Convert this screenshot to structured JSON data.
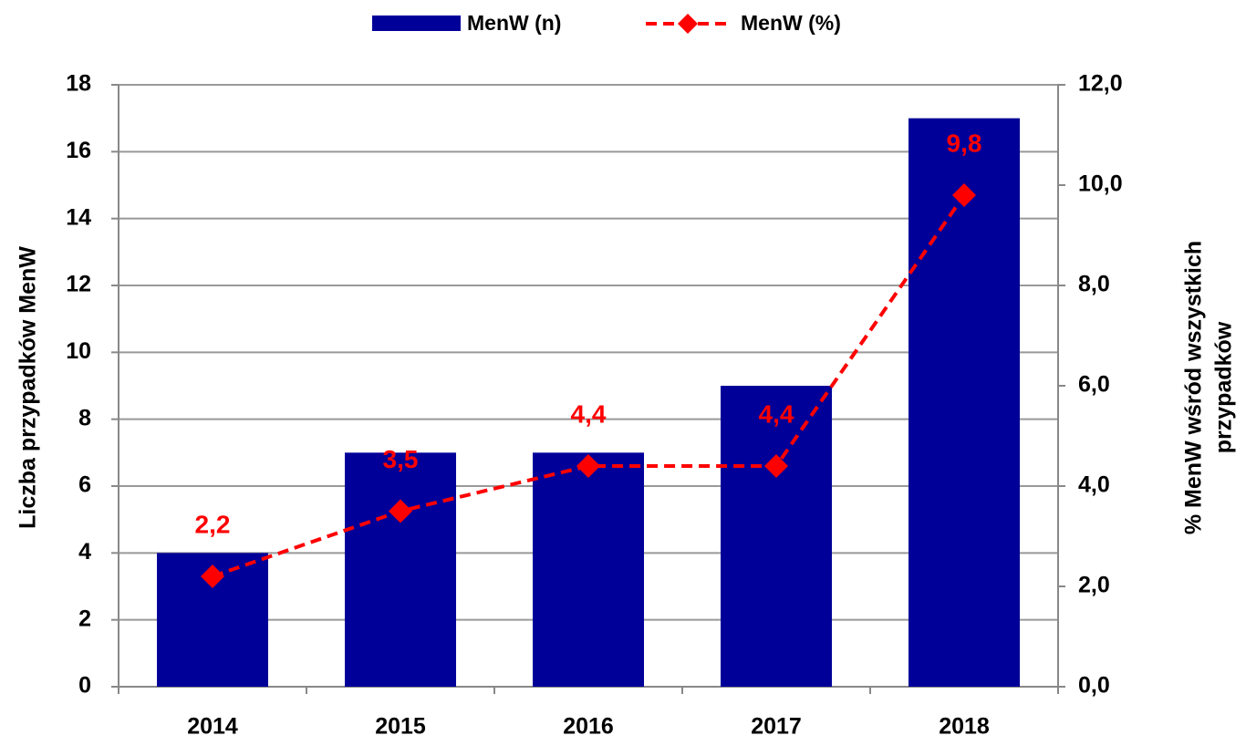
{
  "chart_data": {
    "type": "bar",
    "categories": [
      "2014",
      "2015",
      "2016",
      "2017",
      "2018"
    ],
    "series": [
      {
        "name": "MenW (n)",
        "type": "bar",
        "color": "#000099",
        "values": [
          4,
          7,
          7,
          9,
          17
        ]
      },
      {
        "name": "MenW (%)",
        "type": "line",
        "axis": "y2",
        "color": "#ff0000",
        "values": [
          2.2,
          3.5,
          4.4,
          4.4,
          9.8
        ],
        "value_labels": [
          "2,2",
          "3,5",
          "4,4",
          "4,4",
          "9,8"
        ]
      }
    ],
    "ylabel": "Liczba przypadków  MenW",
    "y2label": [
      "% MenW wśród wszystkich",
      "przypadków"
    ],
    "ylim": [
      0,
      18
    ],
    "yticks": [
      0,
      2,
      4,
      6,
      8,
      10,
      12,
      14,
      16,
      18
    ],
    "y2lim": [
      0,
      12
    ],
    "y2ticks": [
      {
        "value": 0,
        "label": "0,0"
      },
      {
        "value": 2,
        "label": "2,0"
      },
      {
        "value": 4,
        "label": "4,0"
      },
      {
        "value": 6,
        "label": "6,0"
      },
      {
        "value": 8,
        "label": "8,0"
      },
      {
        "value": 10,
        "label": "10,0"
      },
      {
        "value": 12,
        "label": "12,0"
      }
    ],
    "grid": true,
    "legend": "top"
  }
}
